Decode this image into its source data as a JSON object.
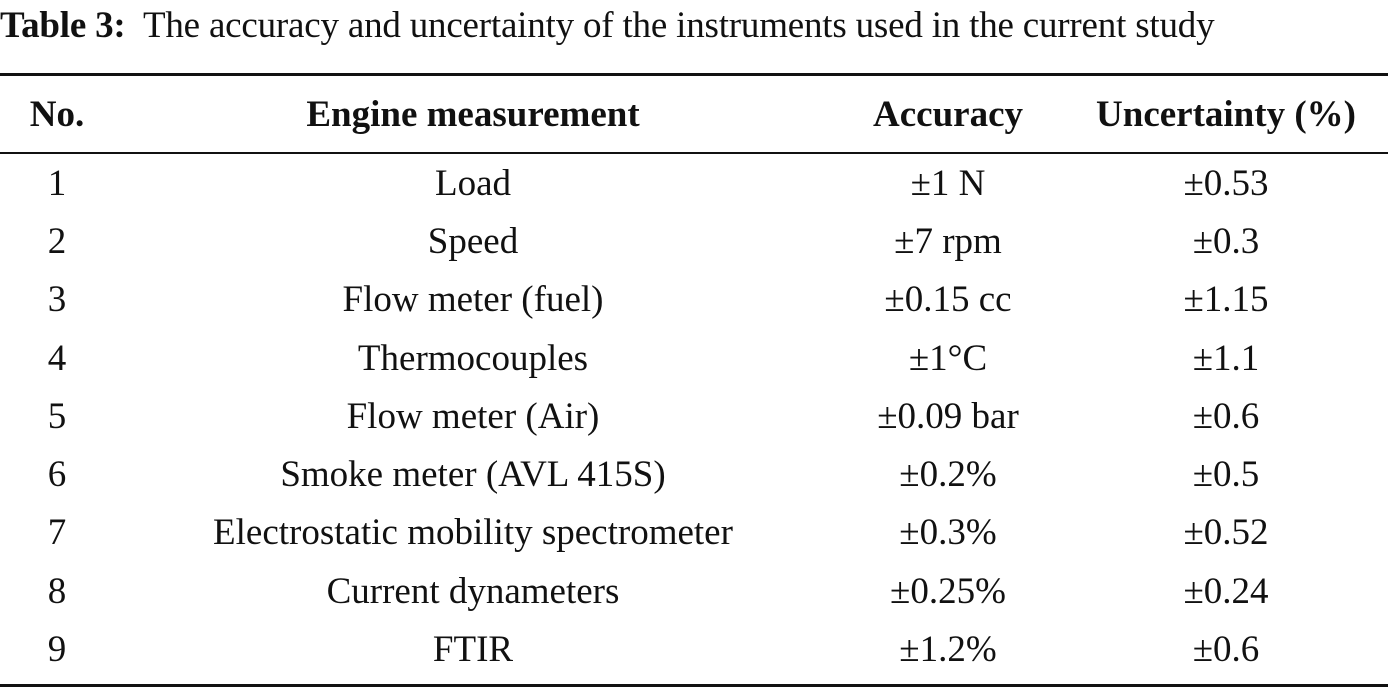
{
  "caption": {
    "label": "Table 3:",
    "text": "The accuracy and uncertainty of the instruments used in the current study"
  },
  "table": {
    "headers": [
      "No.",
      "Engine measurement",
      "Accuracy",
      "Uncertainty (%)"
    ],
    "rows": [
      [
        "1",
        "Load",
        "±1 N",
        "±0.53"
      ],
      [
        "2",
        "Speed",
        "±7 rpm",
        "±0.3"
      ],
      [
        "3",
        "Flow meter (fuel)",
        "±0.15 cc",
        "±1.15"
      ],
      [
        "4",
        "Thermocouples",
        "±1°C",
        "±1.1"
      ],
      [
        "5",
        "Flow meter (Air)",
        "±0.09 bar",
        "±0.6"
      ],
      [
        "6",
        "Smoke meter (AVL 415S)",
        "±0.2%",
        "±0.5"
      ],
      [
        "7",
        "Electrostatic mobility spectrometer",
        "±0.3%",
        "±0.52"
      ],
      [
        "8",
        "Current dynameters",
        "±0.25%",
        "±0.24"
      ],
      [
        "9",
        "FTIR",
        "±1.2%",
        "±0.6"
      ]
    ]
  }
}
